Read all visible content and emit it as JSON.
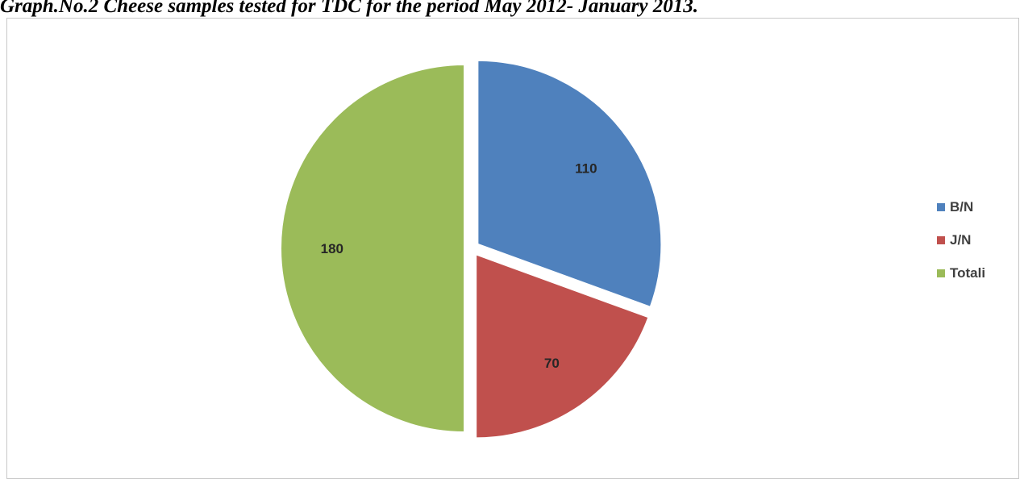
{
  "caption": "Graph.No.2 Cheese samples tested for TDC for the period May 2012- January 2013.",
  "chart_data": {
    "type": "pie",
    "categories": [
      "B/N",
      "J/N",
      "Totali"
    ],
    "values": [
      110,
      70,
      180
    ],
    "colors": [
      "#4f81bd",
      "#c0504d",
      "#9bbb59"
    ],
    "exploded": true,
    "legend": {
      "placement": "right",
      "entries": [
        "B/N",
        "J/N",
        "Totali"
      ]
    },
    "data_labels": [
      "110",
      "70",
      "180"
    ]
  }
}
